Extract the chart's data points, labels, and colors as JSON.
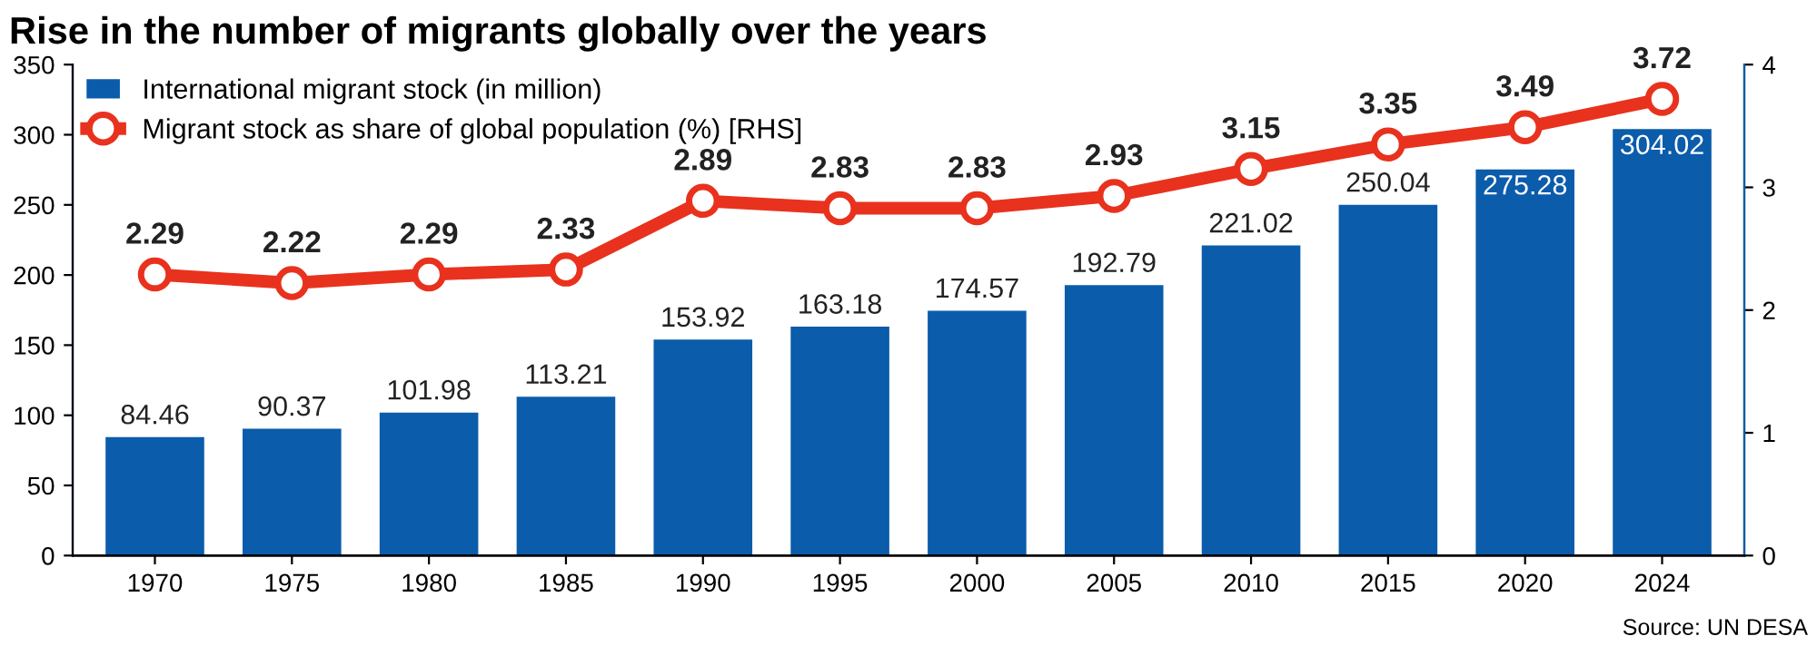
{
  "chart_data": {
    "type": "bar",
    "title": "Rise in the number of migrants globally over the years",
    "categories": [
      "1970",
      "1975",
      "1980",
      "1985",
      "1990",
      "1995",
      "2000",
      "2005",
      "2010",
      "2015",
      "2020",
      "2024"
    ],
    "series": [
      {
        "name": "International migrant stock (in million)",
        "color": "#0b5cab",
        "values": [
          84.46,
          90.37,
          101.98,
          113.21,
          153.92,
          163.18,
          174.57,
          192.79,
          221.02,
          250.04,
          275.28,
          304.02
        ]
      },
      {
        "name": "Migrant stock as share of global population (%) [RHS]",
        "color": "#e8321e",
        "type": "line",
        "axis": "y2",
        "values": [
          2.29,
          2.22,
          2.29,
          2.33,
          2.89,
          2.83,
          2.83,
          2.93,
          3.15,
          3.35,
          3.49,
          3.72
        ]
      }
    ],
    "ylim": [
      0,
      350
    ],
    "yticks": [
      0,
      50,
      100,
      150,
      200,
      250,
      300,
      350
    ],
    "y2lim": [
      0,
      4
    ],
    "y2ticks": [
      0,
      1,
      2,
      3,
      4
    ],
    "marker": "circle",
    "data_labels": true,
    "legend": "top left",
    "grid": false,
    "annotations": [
      "Source: UN DESA"
    ]
  }
}
